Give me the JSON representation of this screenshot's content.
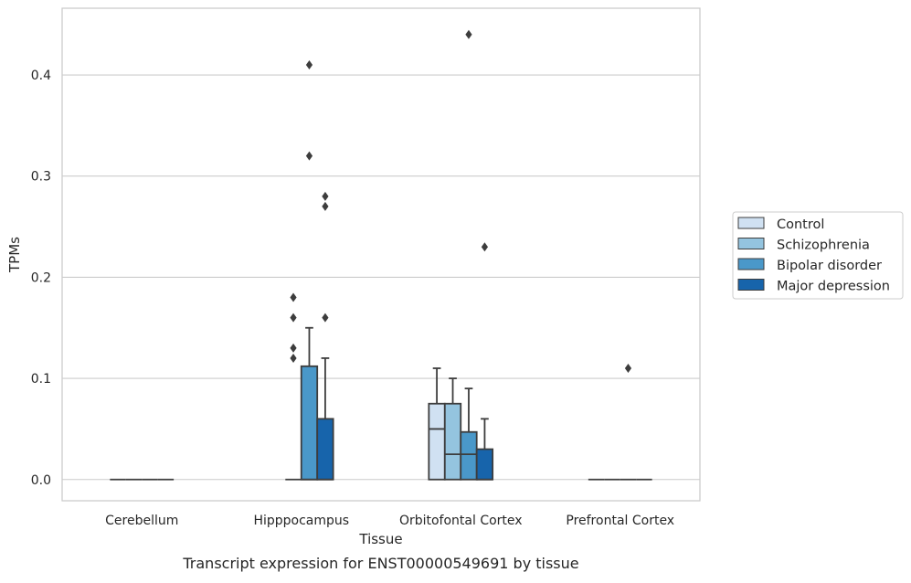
{
  "chart_data": {
    "type": "box",
    "caption": "Transcript expression for ENST00000549691 by tissue",
    "xlabel": "Tissue",
    "ylabel": "TPMs",
    "ylim": [
      -0.021,
      0.466
    ],
    "yticks": [
      0.0,
      0.1,
      0.2,
      0.3,
      0.4
    ],
    "ytick_labels": [
      "0.0",
      "0.1",
      "0.2",
      "0.3",
      "0.4"
    ],
    "grid": true,
    "legend_position": "right",
    "categories": [
      "Cerebellum",
      "Hipppocampus",
      "Orbitofontal Cortex",
      "Prefrontal Cortex"
    ],
    "series": [
      {
        "name": "Control",
        "color": "#d0e1f2",
        "boxes": [
          {
            "q1": 0,
            "median": 0,
            "q3": 0,
            "whislo": 0,
            "whishi": 0,
            "fliers": []
          },
          null,
          {
            "q1": 0,
            "median": 0.05,
            "q3": 0.075,
            "whislo": 0,
            "whishi": 0.11,
            "fliers": []
          },
          {
            "q1": 0,
            "median": 0,
            "q3": 0,
            "whislo": 0,
            "whishi": 0,
            "fliers": []
          }
        ]
      },
      {
        "name": "Schizophrenia",
        "color": "#94c4df",
        "boxes": [
          {
            "q1": 0,
            "median": 0,
            "q3": 0,
            "whislo": 0,
            "whishi": 0,
            "fliers": []
          },
          {
            "q1": 0,
            "median": 0,
            "q3": 0,
            "whislo": 0,
            "whishi": 0,
            "fliers": [
              0.12,
              0.13,
              0.16,
              0.18
            ]
          },
          {
            "q1": 0,
            "median": 0.025,
            "q3": 0.075,
            "whislo": 0,
            "whishi": 0.1,
            "fliers": []
          },
          {
            "q1": 0,
            "median": 0,
            "q3": 0,
            "whislo": 0,
            "whishi": 0,
            "fliers": []
          }
        ]
      },
      {
        "name": "Bipolar disorder",
        "color": "#4a98c9",
        "boxes": [
          {
            "q1": 0,
            "median": 0,
            "q3": 0,
            "whislo": 0,
            "whishi": 0,
            "fliers": []
          },
          {
            "q1": 0,
            "median": 0,
            "q3": 0.112,
            "whislo": 0,
            "whishi": 0.15,
            "fliers": [
              0.32,
              0.41
            ]
          },
          {
            "q1": 0,
            "median": 0.025,
            "q3": 0.047,
            "whislo": 0,
            "whishi": 0.09,
            "fliers": [
              0.44
            ]
          },
          {
            "q1": 0,
            "median": 0,
            "q3": 0,
            "whislo": 0,
            "whishi": 0,
            "fliers": [
              0.11
            ]
          }
        ]
      },
      {
        "name": "Major depression",
        "color": "#1764ab",
        "boxes": [
          {
            "q1": 0,
            "median": 0,
            "q3": 0,
            "whislo": 0,
            "whishi": 0,
            "fliers": []
          },
          {
            "q1": 0,
            "median": 0,
            "q3": 0.06,
            "whislo": 0,
            "whishi": 0.12,
            "fliers": [
              0.16,
              0.27,
              0.28
            ]
          },
          {
            "q1": 0,
            "median": 0,
            "q3": 0.03,
            "whislo": 0,
            "whishi": 0.06,
            "fliers": [
              0.23
            ]
          },
          {
            "q1": 0,
            "median": 0,
            "q3": 0,
            "whislo": 0,
            "whishi": 0,
            "fliers": []
          }
        ]
      }
    ]
  }
}
